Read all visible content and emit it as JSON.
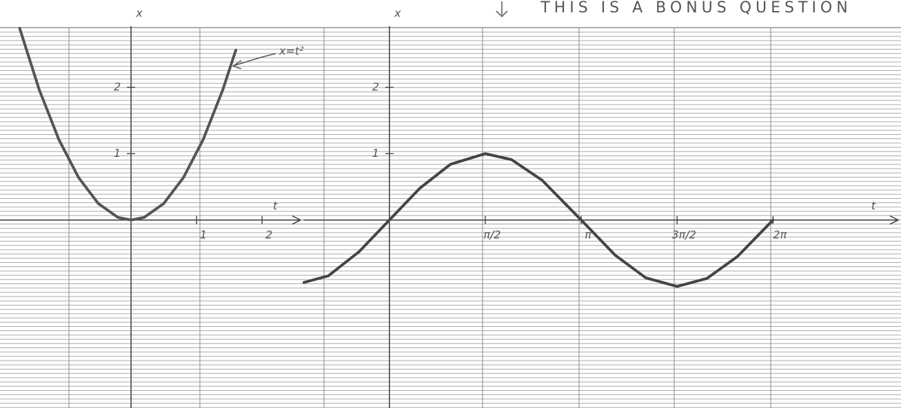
{
  "chart_data": [
    {
      "type": "line",
      "x_label": "t",
      "y_label": "x",
      "annotation": "x=t²",
      "x": [
        -1.7,
        -1.4,
        -1.1,
        -0.8,
        -0.5,
        -0.2,
        0,
        0.2,
        0.5,
        0.8,
        1.1,
        1.4,
        1.6
      ],
      "series": [
        {
          "color": "#555555",
          "values": [
            2.89,
            1.96,
            1.21,
            0.64,
            0.25,
            0.04,
            0,
            0.04,
            0.25,
            0.64,
            1.21,
            1.96,
            2.56
          ]
        }
      ],
      "xlim": [
        -2,
        2.63
      ],
      "ylim": [
        -2.8,
        2.9
      ],
      "xticks": [
        1,
        2
      ],
      "yticks": [
        1,
        2
      ]
    },
    {
      "type": "line",
      "title": "THIS IS A BONUS QUESTION",
      "x_label": "t",
      "y_label": "x",
      "x": [
        -1.4,
        -1,
        -0.5,
        0,
        0.5,
        1,
        1.5708,
        2,
        2.5,
        3.1416,
        3.7,
        4.2,
        4.7124,
        5.2,
        5.7,
        6.2832
      ],
      "series": [
        {
          "color": "#444444",
          "values": [
            -0.94,
            -0.84,
            -0.48,
            0,
            0.48,
            0.84,
            1,
            0.91,
            0.6,
            0,
            -0.53,
            -0.87,
            -1,
            -0.88,
            -0.55,
            0
          ]
        }
      ],
      "xlim": [
        -1.41,
        8.38
      ],
      "ylim": [
        -2.8,
        2.9
      ],
      "xticks": [
        {
          "value": 1.5708,
          "label": "π/2"
        },
        {
          "value": 3.1416,
          "label": "π"
        },
        {
          "value": 4.7124,
          "label": "3π/2"
        },
        {
          "value": 6.2832,
          "label": "2π"
        }
      ],
      "yticks": [
        1,
        2
      ]
    }
  ]
}
